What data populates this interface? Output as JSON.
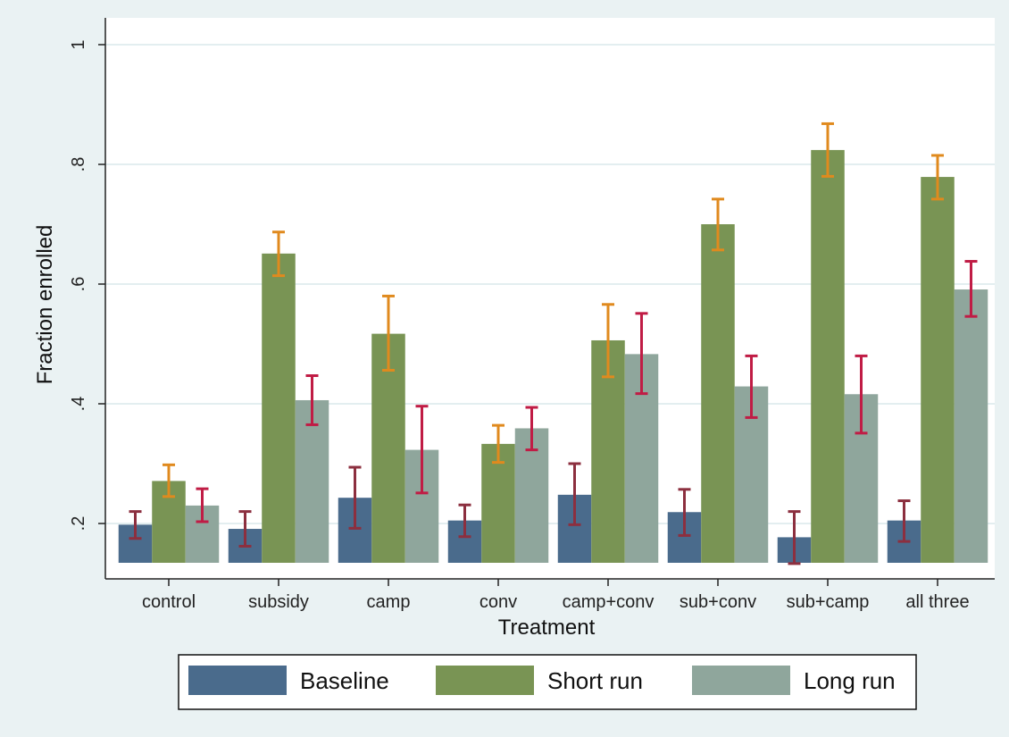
{
  "chart_data": {
    "type": "bar",
    "title": "",
    "xlabel": "Treatment",
    "ylabel": "Fraction enrolled",
    "ylim": [
      0.135,
      1.0
    ],
    "yticks": [
      0.2,
      0.4,
      0.6,
      0.8,
      1.0
    ],
    "ytick_labels": [
      ".2",
      ".4",
      ".6",
      ".8",
      "1"
    ],
    "grid": true,
    "legend_position": "bottom",
    "categories": [
      "control",
      "subsidy",
      "camp",
      "conv",
      "camp+conv",
      "sub+conv",
      "sub+camp",
      "all three"
    ],
    "series": [
      {
        "name": "Baseline",
        "color": "#4a6b8c",
        "values": [
          0.198,
          0.191,
          0.243,
          0.205,
          0.248,
          0.219,
          0.177,
          0.205
        ],
        "ci_low": [
          0.175,
          0.162,
          0.192,
          0.178,
          0.198,
          0.18,
          0.133,
          0.17
        ],
        "ci_high": [
          0.22,
          0.22,
          0.294,
          0.231,
          0.3,
          0.257,
          0.22,
          0.238
        ],
        "error_color": "#8c2f3f"
      },
      {
        "name": "Short run",
        "color": "#799454",
        "values": [
          0.271,
          0.651,
          0.517,
          0.333,
          0.506,
          0.7,
          0.824,
          0.779
        ],
        "ci_low": [
          0.245,
          0.614,
          0.456,
          0.302,
          0.445,
          0.657,
          0.78,
          0.742
        ],
        "ci_high": [
          0.298,
          0.687,
          0.58,
          0.364,
          0.566,
          0.742,
          0.868,
          0.815
        ],
        "error_color": "#e08a1e"
      },
      {
        "name": "Long run",
        "color": "#8fa69c",
        "values": [
          0.23,
          0.406,
          0.323,
          0.359,
          0.483,
          0.429,
          0.416,
          0.591
        ],
        "ci_low": [
          0.203,
          0.365,
          0.251,
          0.323,
          0.417,
          0.377,
          0.351,
          0.546
        ],
        "ci_high": [
          0.258,
          0.447,
          0.396,
          0.394,
          0.551,
          0.48,
          0.48,
          0.638
        ],
        "error_color": "#c01c45"
      }
    ]
  }
}
